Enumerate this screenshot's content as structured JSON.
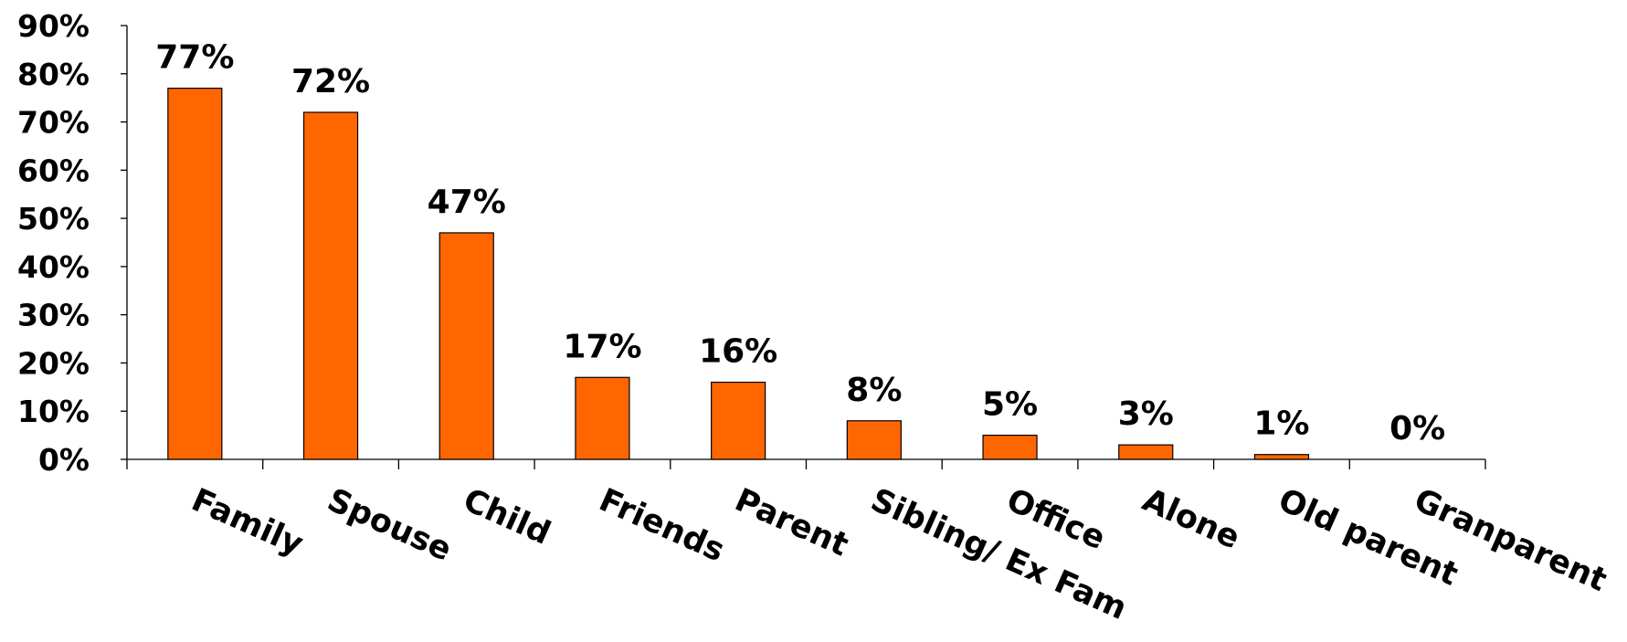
{
  "chart_data": {
    "type": "bar",
    "categories": [
      "Family",
      "Spouse",
      "Child",
      "Friends",
      "Parent",
      "Sibling/ Ex Fam",
      "Office",
      "Alone",
      "Old parent",
      "Granparent"
    ],
    "values": [
      77,
      72,
      47,
      17,
      16,
      8,
      5,
      3,
      1,
      0
    ],
    "data_labels": [
      "77%",
      "72%",
      "47%",
      "17%",
      "16%",
      "8%",
      "5%",
      "3%",
      "1%",
      "0%"
    ],
    "y_ticks": [
      "0%",
      "10%",
      "20%",
      "30%",
      "40%",
      "50%",
      "60%",
      "70%",
      "80%",
      "90%"
    ],
    "ylim": [
      0,
      90
    ],
    "bar_color": "#FF6600",
    "grid": false,
    "legend": "none"
  }
}
